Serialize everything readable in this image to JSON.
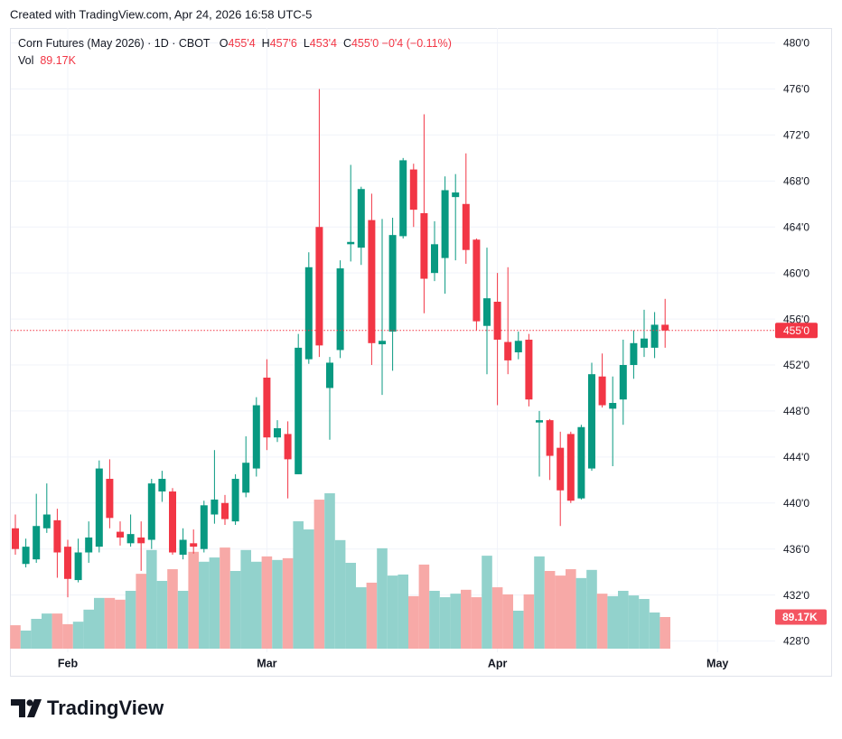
{
  "caption": "Created with TradingView.com, Apr 24, 2026 16:58 UTC-5",
  "brand": "TradingView",
  "chart_data": {
    "type": "candlestick",
    "header": {
      "symbol": "Corn Futures (May 2026) · 1D · CBOT",
      "ohlc": [
        {
          "key": "O",
          "label": "455'4"
        },
        {
          "key": "H",
          "label": "457'6"
        },
        {
          "key": "L",
          "label": "453'4"
        },
        {
          "key": "C",
          "label": "455'0"
        }
      ],
      "change": "−0'4 (−0.11%)",
      "volume": {
        "key": "Vol",
        "label": "89.17K"
      }
    },
    "categories": [
      null,
      null,
      null,
      null,
      null,
      "Feb",
      null,
      null,
      null,
      null,
      null,
      null,
      null,
      null,
      null,
      null,
      null,
      null,
      null,
      null,
      null,
      null,
      null,
      null,
      "Mar",
      null,
      null,
      null,
      null,
      null,
      null,
      null,
      null,
      null,
      null,
      null,
      null,
      null,
      null,
      null,
      null,
      null,
      null,
      null,
      null,
      null,
      "Apr",
      null,
      null,
      null,
      null,
      null,
      null,
      null,
      null,
      null,
      null,
      null,
      null,
      null,
      null,
      null,
      null,
      null,
      null,
      null,
      null,
      "May"
    ],
    "open": [
      437.8,
      434.7,
      435.1,
      437.8,
      438.5,
      436.2,
      433.3,
      435.7,
      436.2,
      442.1,
      437.5,
      436.5,
      437.0,
      436.8,
      441.0,
      441.0,
      435.5,
      436.5,
      436.0,
      439.0,
      440.0,
      438.4,
      440.9,
      443.0,
      450.9,
      445.7,
      446.0,
      442.5,
      452.5,
      464.0,
      450.0,
      453.3,
      462.5,
      462.2,
      464.6,
      453.8,
      454.9,
      463.2,
      469.0,
      465.2,
      460.0,
      461.3,
      466.6,
      466.0,
      462.9,
      455.4,
      457.5,
      454.0,
      453.1,
      454.2,
      447.0,
      447.2,
      444.8,
      446.0,
      440.4,
      443.0,
      451.0,
      448.2,
      449.0,
      452.0,
      453.5,
      453.5,
      455.5,
      null,
      null,
      null,
      null,
      null
    ],
    "high": [
      439.0,
      436.9,
      440.8,
      441.7,
      439.5,
      436.8,
      436.9,
      438.4,
      443.7,
      443.8,
      438.4,
      439.0,
      438.4,
      442.1,
      442.8,
      441.3,
      437.8,
      437.7,
      440.2,
      444.6,
      440.7,
      442.5,
      445.8,
      449.2,
      452.5,
      447.2,
      447.1,
      454.7,
      461.8,
      476.0,
      452.7,
      461.1,
      469.4,
      467.5,
      466.9,
      464.7,
      464.8,
      470.0,
      469.5,
      473.8,
      464.5,
      468.4,
      468.6,
      470.4,
      463.0,
      462.2,
      460.0,
      460.5,
      454.9,
      454.7,
      448.0,
      447.3,
      446.2,
      446.2,
      446.8,
      452.2,
      453.0,
      451.0,
      454.2,
      455.0,
      456.8,
      456.6,
      457.75,
      null,
      null,
      null,
      null,
      null
    ],
    "low": [
      435.5,
      434.4,
      434.8,
      437.4,
      433.5,
      431.8,
      433.1,
      434.8,
      435.7,
      437.8,
      436.3,
      436.2,
      434.1,
      436.0,
      440.1,
      435.5,
      435.1,
      435.6,
      435.7,
      438.2,
      438.1,
      438.1,
      440.5,
      442.3,
      444.6,
      445.3,
      440.4,
      442.5,
      452.1,
      452.7,
      445.5,
      452.6,
      461.0,
      460.7,
      452.0,
      449.4,
      451.5,
      463.0,
      464.0,
      456.5,
      459.3,
      458.2,
      461.1,
      460.8,
      455.0,
      451.2,
      448.5,
      451.2,
      452.5,
      448.4,
      442.3,
      442.0,
      438.0,
      440.0,
      440.3,
      442.8,
      448.3,
      443.2,
      446.8,
      450.8,
      452.7,
      452.6,
      453.5,
      null,
      null,
      null,
      null,
      null
    ],
    "close": [
      436.0,
      436.2,
      438.0,
      439.0,
      435.7,
      433.4,
      435.7,
      437.0,
      443.0,
      438.7,
      437.0,
      437.3,
      436.5,
      441.7,
      442.1,
      435.7,
      436.8,
      436.2,
      439.8,
      440.3,
      438.6,
      442.1,
      443.5,
      448.5,
      445.7,
      446.5,
      443.8,
      453.5,
      460.5,
      453.7,
      452.2,
      460.4,
      462.7,
      467.3,
      453.9,
      454.1,
      463.3,
      469.8,
      465.5,
      459.5,
      462.5,
      467.2,
      467.0,
      462.0,
      455.8,
      457.8,
      454.2,
      452.4,
      454.1,
      449.0,
      447.2,
      444.1,
      441.1,
      440.2,
      446.6,
      451.2,
      448.5,
      448.7,
      452.0,
      453.9,
      454.3,
      455.5,
      455.0,
      null,
      null,
      null,
      null,
      null
    ],
    "volume": [
      66000,
      51000,
      84000,
      99000,
      99000,
      69000,
      76000,
      110000,
      143000,
      143000,
      138000,
      163000,
      211000,
      278000,
      191000,
      224000,
      163000,
      273000,
      245000,
      257000,
      285000,
      219000,
      278000,
      245000,
      260000,
      250000,
      255000,
      359000,
      336000,
      420000,
      438000,
      306000,
      242000,
      173000,
      186000,
      283000,
      206000,
      209000,
      148000,
      237000,
      163000,
      145000,
      155000,
      166000,
      145000,
      262000,
      173000,
      153000,
      107000,
      153000,
      260000,
      219000,
      206000,
      224000,
      199000,
      222000,
      155000,
      148000,
      163000,
      150000,
      140000,
      102000,
      89170,
      null,
      null,
      null,
      null,
      null
    ],
    "ylim": [
      424.9,
      481.3
    ],
    "yticks": [
      {
        "value": 428,
        "label": "428'0"
      },
      {
        "value": 432,
        "label": "432'0"
      },
      {
        "value": 436,
        "label": "436'0"
      },
      {
        "value": 440,
        "label": "440'0"
      },
      {
        "value": 444,
        "label": "444'0"
      },
      {
        "value": 448,
        "label": "448'0"
      },
      {
        "value": 452,
        "label": "452'0"
      },
      {
        "value": 456,
        "label": "456'0"
      },
      {
        "value": 460,
        "label": "460'0"
      },
      {
        "value": 464,
        "label": "464'0"
      },
      {
        "value": 468,
        "label": "468'0"
      },
      {
        "value": 472,
        "label": "472'0"
      },
      {
        "value": 476,
        "label": "476'0"
      },
      {
        "value": 480,
        "label": "480'0"
      }
    ],
    "grid": true,
    "up_color": "#089981",
    "down_color": "#f23645",
    "up_volume_color": "#92d2cc",
    "down_volume_color": "#f7a9a7"
  }
}
